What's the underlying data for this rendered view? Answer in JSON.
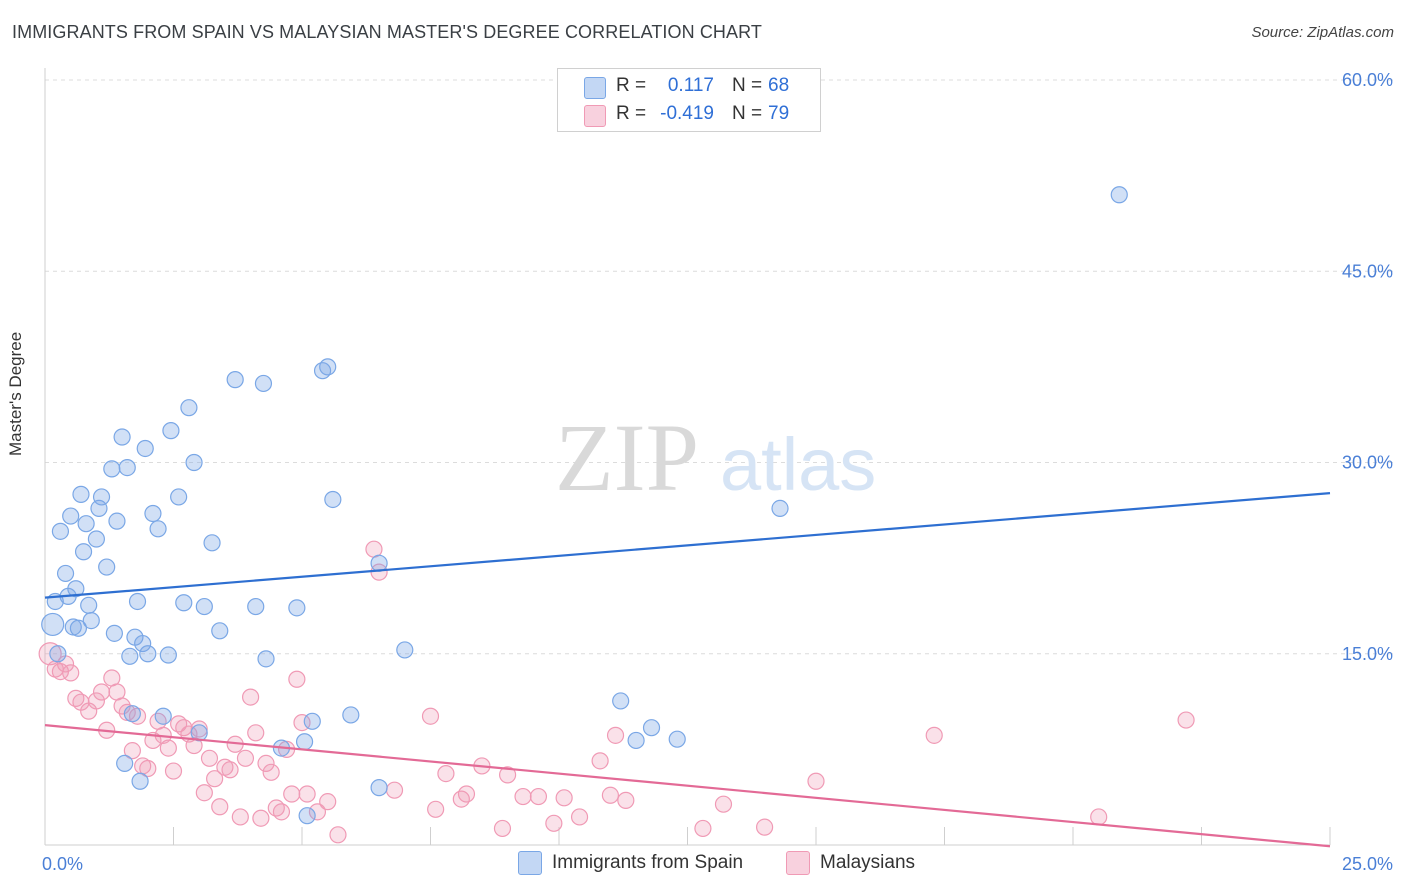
{
  "title": "IMMIGRANTS FROM SPAIN VS MALAYSIAN MASTER'S DEGREE CORRELATION CHART",
  "source": "Source: ZipAtlas.com",
  "watermark": {
    "zip": "ZIP",
    "atlas": "atlas"
  },
  "legend_top": {
    "rows": [
      {
        "r_label": "R =",
        "r_value": "0.117",
        "n_label": "N =",
        "n_value": "68",
        "color": "#7aa7e6"
      },
      {
        "r_label": "R =",
        "r_value": "-0.419",
        "n_label": "N =",
        "n_value": "79",
        "color": "#f09ab5"
      }
    ]
  },
  "legend_bottom": {
    "items": [
      {
        "label": "Immigrants from Spain",
        "color": "#7aa7e6"
      },
      {
        "label": "Malaysians",
        "color": "#f09ab5"
      }
    ]
  },
  "colors": {
    "blue_fill": "rgba(122,167,230,0.35)",
    "blue_stroke": "#7aa7e6",
    "blue_line": "#2e6fd1",
    "pink_fill": "rgba(240,154,181,0.30)",
    "pink_stroke": "#f09ab5",
    "pink_line": "#e36a96",
    "grid": "#dcdcdc",
    "axis_text": "#4a7fd6"
  },
  "chart_data": {
    "type": "scatter",
    "title": "IMMIGRANTS FROM SPAIN VS MALAYSIAN MASTER'S DEGREE CORRELATION CHART",
    "xlabel": "",
    "ylabel": "Master's Degree",
    "xlim": [
      0,
      25
    ],
    "ylim": [
      0,
      60
    ],
    "x_tick_labels": [
      "0.0%",
      "25.0%"
    ],
    "y_ticks": [
      15,
      30,
      45,
      60
    ],
    "y_tick_labels": [
      "15.0%",
      "30.0%",
      "45.0%",
      "60.0%"
    ],
    "series": [
      {
        "name": "Immigrants from Spain",
        "r": 0.117,
        "n": 68,
        "trend": {
          "x": [
            0,
            25
          ],
          "y": [
            19.4,
            27.6
          ]
        },
        "points": [
          [
            0.15,
            17.3
          ],
          [
            0.2,
            19.1
          ],
          [
            0.25,
            15.0
          ],
          [
            0.3,
            24.6
          ],
          [
            0.4,
            21.3
          ],
          [
            0.45,
            19.5
          ],
          [
            0.5,
            25.8
          ],
          [
            0.55,
            17.1
          ],
          [
            0.6,
            20.1
          ],
          [
            0.65,
            17.0
          ],
          [
            0.7,
            27.5
          ],
          [
            0.75,
            23.0
          ],
          [
            0.8,
            25.2
          ],
          [
            0.85,
            18.8
          ],
          [
            0.9,
            17.6
          ],
          [
            1.0,
            24.0
          ],
          [
            1.05,
            26.4
          ],
          [
            1.1,
            27.3
          ],
          [
            1.2,
            21.8
          ],
          [
            1.3,
            29.5
          ],
          [
            1.35,
            16.6
          ],
          [
            1.4,
            25.4
          ],
          [
            1.5,
            32.0
          ],
          [
            1.55,
            6.4
          ],
          [
            1.6,
            29.6
          ],
          [
            1.65,
            14.8
          ],
          [
            1.7,
            10.3
          ],
          [
            1.75,
            16.3
          ],
          [
            1.8,
            19.1
          ],
          [
            1.85,
            5.0
          ],
          [
            1.9,
            15.8
          ],
          [
            1.95,
            31.1
          ],
          [
            2.0,
            15.0
          ],
          [
            2.1,
            26.0
          ],
          [
            2.2,
            24.8
          ],
          [
            2.3,
            10.1
          ],
          [
            2.4,
            14.9
          ],
          [
            2.45,
            32.5
          ],
          [
            2.6,
            27.3
          ],
          [
            2.7,
            19.0
          ],
          [
            2.8,
            34.3
          ],
          [
            2.9,
            30.0
          ],
          [
            3.0,
            8.8
          ],
          [
            3.1,
            18.7
          ],
          [
            3.25,
            23.7
          ],
          [
            3.4,
            16.8
          ],
          [
            3.7,
            36.5
          ],
          [
            4.1,
            18.7
          ],
          [
            4.25,
            36.2
          ],
          [
            4.3,
            14.6
          ],
          [
            4.6,
            7.6
          ],
          [
            4.9,
            18.6
          ],
          [
            5.05,
            8.1
          ],
          [
            5.1,
            2.3
          ],
          [
            5.2,
            9.7
          ],
          [
            5.4,
            37.2
          ],
          [
            5.5,
            37.5
          ],
          [
            5.6,
            27.1
          ],
          [
            5.95,
            10.2
          ],
          [
            6.5,
            4.5
          ],
          [
            6.5,
            22.1
          ],
          [
            7.0,
            15.3
          ],
          [
            11.2,
            11.3
          ],
          [
            11.5,
            8.2
          ],
          [
            11.8,
            9.2
          ],
          [
            12.3,
            8.3
          ],
          [
            14.3,
            26.4
          ],
          [
            20.9,
            51.0
          ]
        ]
      },
      {
        "name": "Malaysians",
        "r": -0.419,
        "n": 79,
        "trend": {
          "x": [
            0,
            25
          ],
          "y": [
            9.4,
            -0.1
          ]
        },
        "points": [
          [
            0.1,
            15.0
          ],
          [
            0.2,
            13.8
          ],
          [
            0.3,
            13.6
          ],
          [
            0.4,
            14.2
          ],
          [
            0.5,
            13.5
          ],
          [
            0.6,
            11.5
          ],
          [
            0.7,
            11.2
          ],
          [
            0.85,
            10.5
          ],
          [
            1.0,
            11.3
          ],
          [
            1.1,
            12.0
          ],
          [
            1.2,
            9.0
          ],
          [
            1.3,
            13.1
          ],
          [
            1.4,
            12.0
          ],
          [
            1.5,
            10.9
          ],
          [
            1.6,
            10.4
          ],
          [
            1.7,
            7.4
          ],
          [
            1.8,
            10.1
          ],
          [
            1.9,
            6.2
          ],
          [
            2.0,
            6.0
          ],
          [
            2.1,
            8.2
          ],
          [
            2.2,
            9.7
          ],
          [
            2.3,
            8.6
          ],
          [
            2.4,
            7.6
          ],
          [
            2.5,
            5.8
          ],
          [
            2.6,
            9.5
          ],
          [
            2.7,
            9.2
          ],
          [
            2.8,
            8.7
          ],
          [
            2.9,
            7.8
          ],
          [
            3.0,
            9.1
          ],
          [
            3.1,
            4.1
          ],
          [
            3.2,
            6.8
          ],
          [
            3.3,
            5.2
          ],
          [
            3.4,
            3.0
          ],
          [
            3.5,
            6.1
          ],
          [
            3.6,
            5.9
          ],
          [
            3.7,
            7.9
          ],
          [
            3.8,
            2.2
          ],
          [
            3.9,
            6.8
          ],
          [
            4.0,
            11.6
          ],
          [
            4.1,
            8.8
          ],
          [
            4.2,
            2.1
          ],
          [
            4.3,
            6.4
          ],
          [
            4.4,
            5.7
          ],
          [
            4.5,
            2.9
          ],
          [
            4.6,
            2.6
          ],
          [
            4.7,
            7.5
          ],
          [
            4.8,
            4.0
          ],
          [
            4.9,
            13.0
          ],
          [
            5.0,
            9.6
          ],
          [
            5.1,
            4.0
          ],
          [
            5.3,
            2.6
          ],
          [
            5.5,
            3.4
          ],
          [
            5.7,
            0.8
          ],
          [
            6.4,
            23.2
          ],
          [
            6.5,
            21.4
          ],
          [
            6.8,
            4.3
          ],
          [
            7.5,
            10.1
          ],
          [
            7.6,
            2.8
          ],
          [
            7.8,
            5.6
          ],
          [
            8.1,
            3.6
          ],
          [
            8.2,
            4.0
          ],
          [
            8.5,
            6.2
          ],
          [
            8.9,
            1.3
          ],
          [
            9.0,
            5.5
          ],
          [
            9.3,
            3.8
          ],
          [
            9.6,
            3.8
          ],
          [
            9.9,
            1.7
          ],
          [
            10.1,
            3.7
          ],
          [
            10.4,
            2.2
          ],
          [
            10.8,
            6.6
          ],
          [
            11.0,
            3.9
          ],
          [
            11.1,
            8.6
          ],
          [
            11.3,
            3.5
          ],
          [
            12.8,
            1.3
          ],
          [
            13.2,
            3.2
          ],
          [
            14.0,
            1.4
          ],
          [
            15.0,
            5.0
          ],
          [
            17.3,
            8.6
          ],
          [
            20.5,
            2.2
          ],
          [
            22.2,
            9.8
          ]
        ]
      }
    ]
  }
}
